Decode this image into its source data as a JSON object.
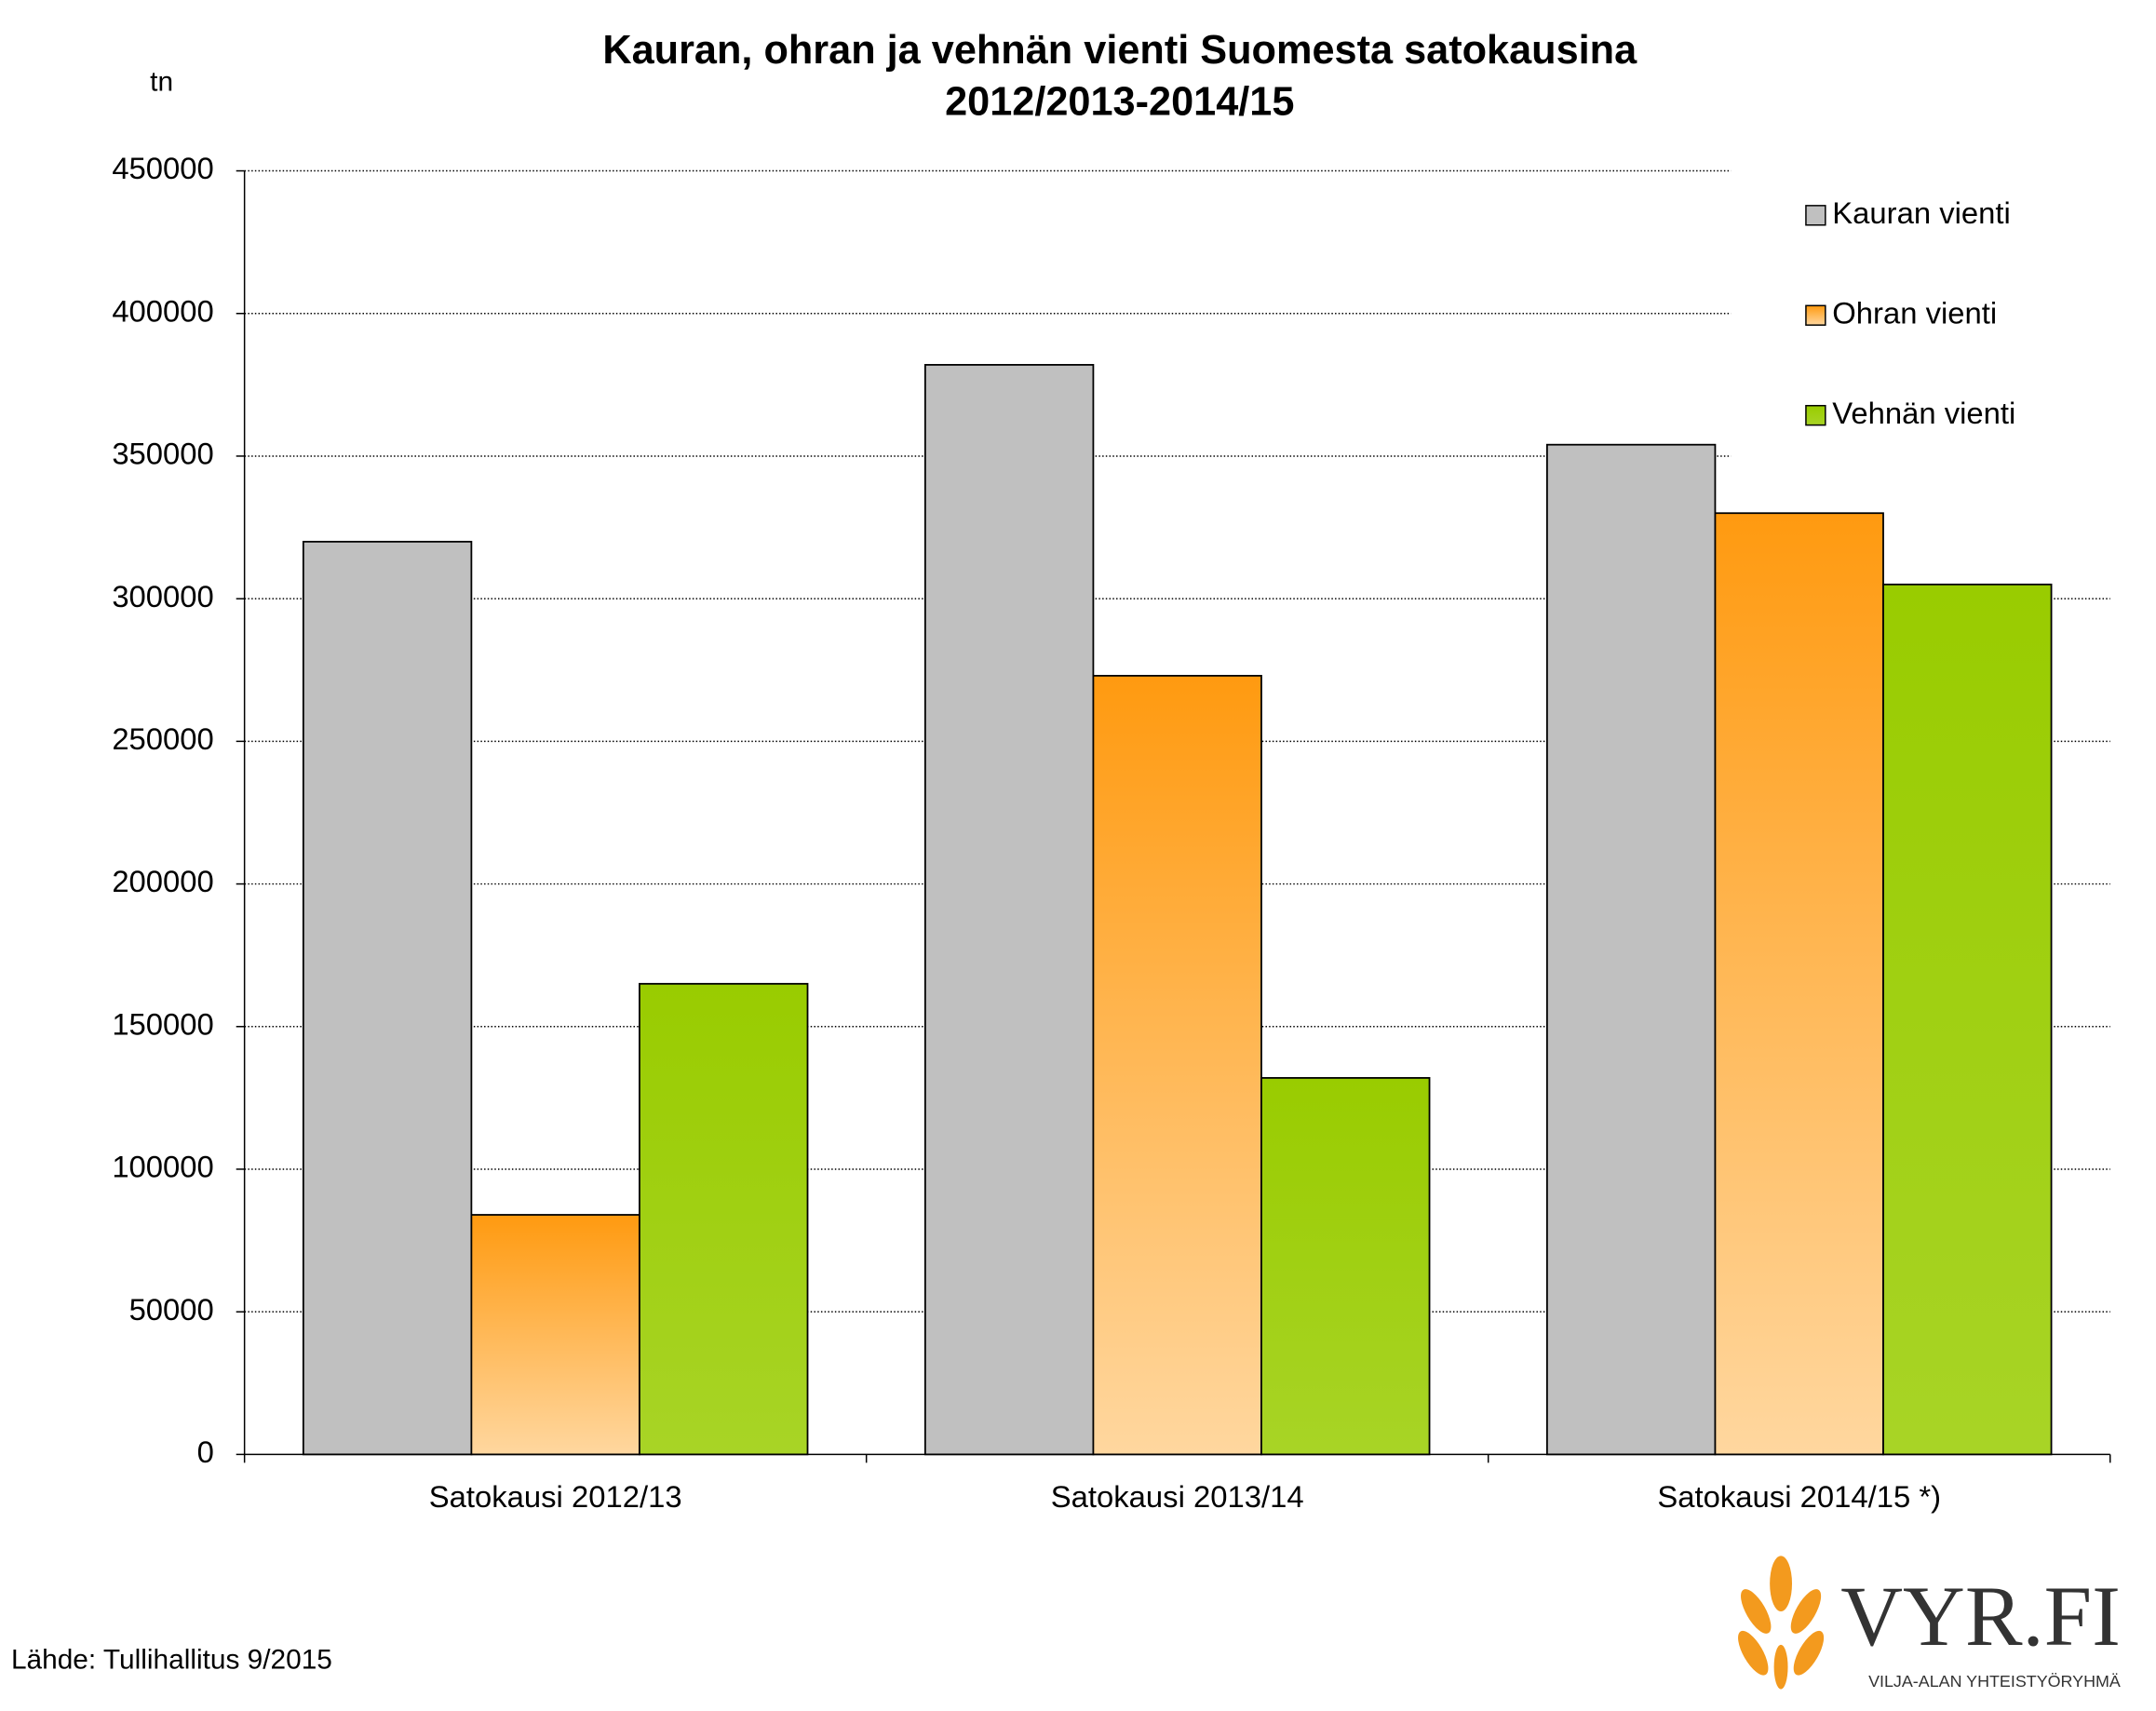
{
  "chart_data": {
    "type": "bar",
    "title": [
      "Kauran, ohran ja vehnän vienti Suomesta satokausina",
      "2012/2013-2014/15"
    ],
    "y_label": "tn",
    "categories": [
      "Satokausi 2012/13",
      "Satokausi 2013/14",
      "Satokausi 2014/15 *)"
    ],
    "series": [
      {
        "name": "Kauran vienti",
        "color": "#c0c0c0",
        "values": [
          320000,
          382000,
          354000
        ]
      },
      {
        "name": "Ohran vienti",
        "color": "#ff9a10",
        "values": [
          84000,
          273000,
          330000
        ]
      },
      {
        "name": "Vehnän  vienti",
        "color": "#99cc00",
        "values": [
          165000,
          132000,
          305000
        ]
      }
    ],
    "ylim": [
      0,
      450000
    ],
    "yticks": [
      0,
      50000,
      100000,
      150000,
      200000,
      250000,
      300000,
      350000,
      400000,
      450000
    ],
    "grid": true,
    "legend": "top-right",
    "source": "Lähde:  Tullihallitus  9/2015",
    "logo_text": "VYR.FI",
    "logo_subtitle": "VILJA-ALAN YHTEISTYÖRYHMÄ"
  }
}
